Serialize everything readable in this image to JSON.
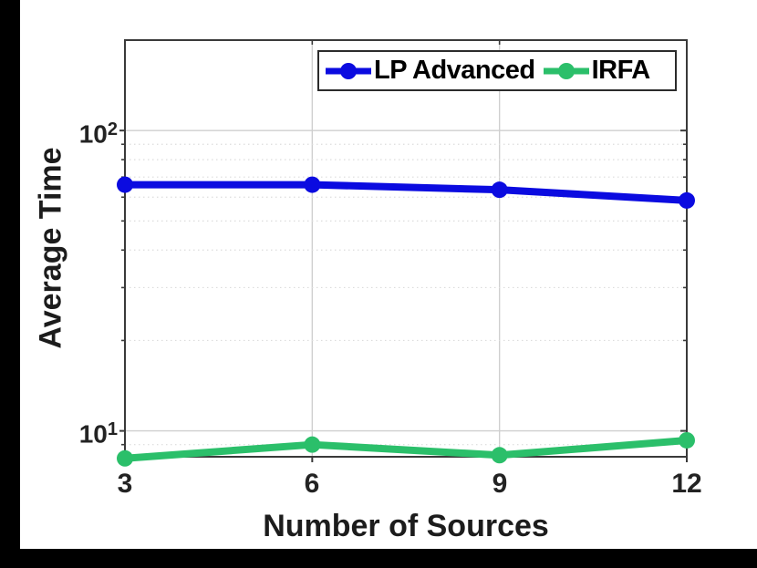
{
  "figure": {
    "background": "#ffffff",
    "frame_bars_color": "#000000"
  },
  "chart_data": {
    "type": "line",
    "title": "",
    "xlabel": "Number of Sources",
    "ylabel": "Average Time",
    "x": [
      3,
      6,
      9,
      12
    ],
    "xticks": [
      "3",
      "6",
      "9",
      "12"
    ],
    "y_scale": "log",
    "ylim": [
      8.2,
      200
    ],
    "yticks": [
      {
        "value": 10,
        "mantissa": "10",
        "exp": "1"
      },
      {
        "value": 100,
        "mantissa": "10",
        "exp": "2"
      }
    ],
    "grid": true,
    "minor_grid": true,
    "legend_position": "top-right-horizontal",
    "series": [
      {
        "name": "LP Advanced",
        "color": "#0b0be0",
        "marker": "circle",
        "values": [
          66,
          66,
          63.5,
          58.5
        ]
      },
      {
        "name": "IRFA",
        "color": "#2bbf6a",
        "marker": "circle",
        "values": [
          8.1,
          9.0,
          8.3,
          9.3
        ]
      }
    ]
  }
}
